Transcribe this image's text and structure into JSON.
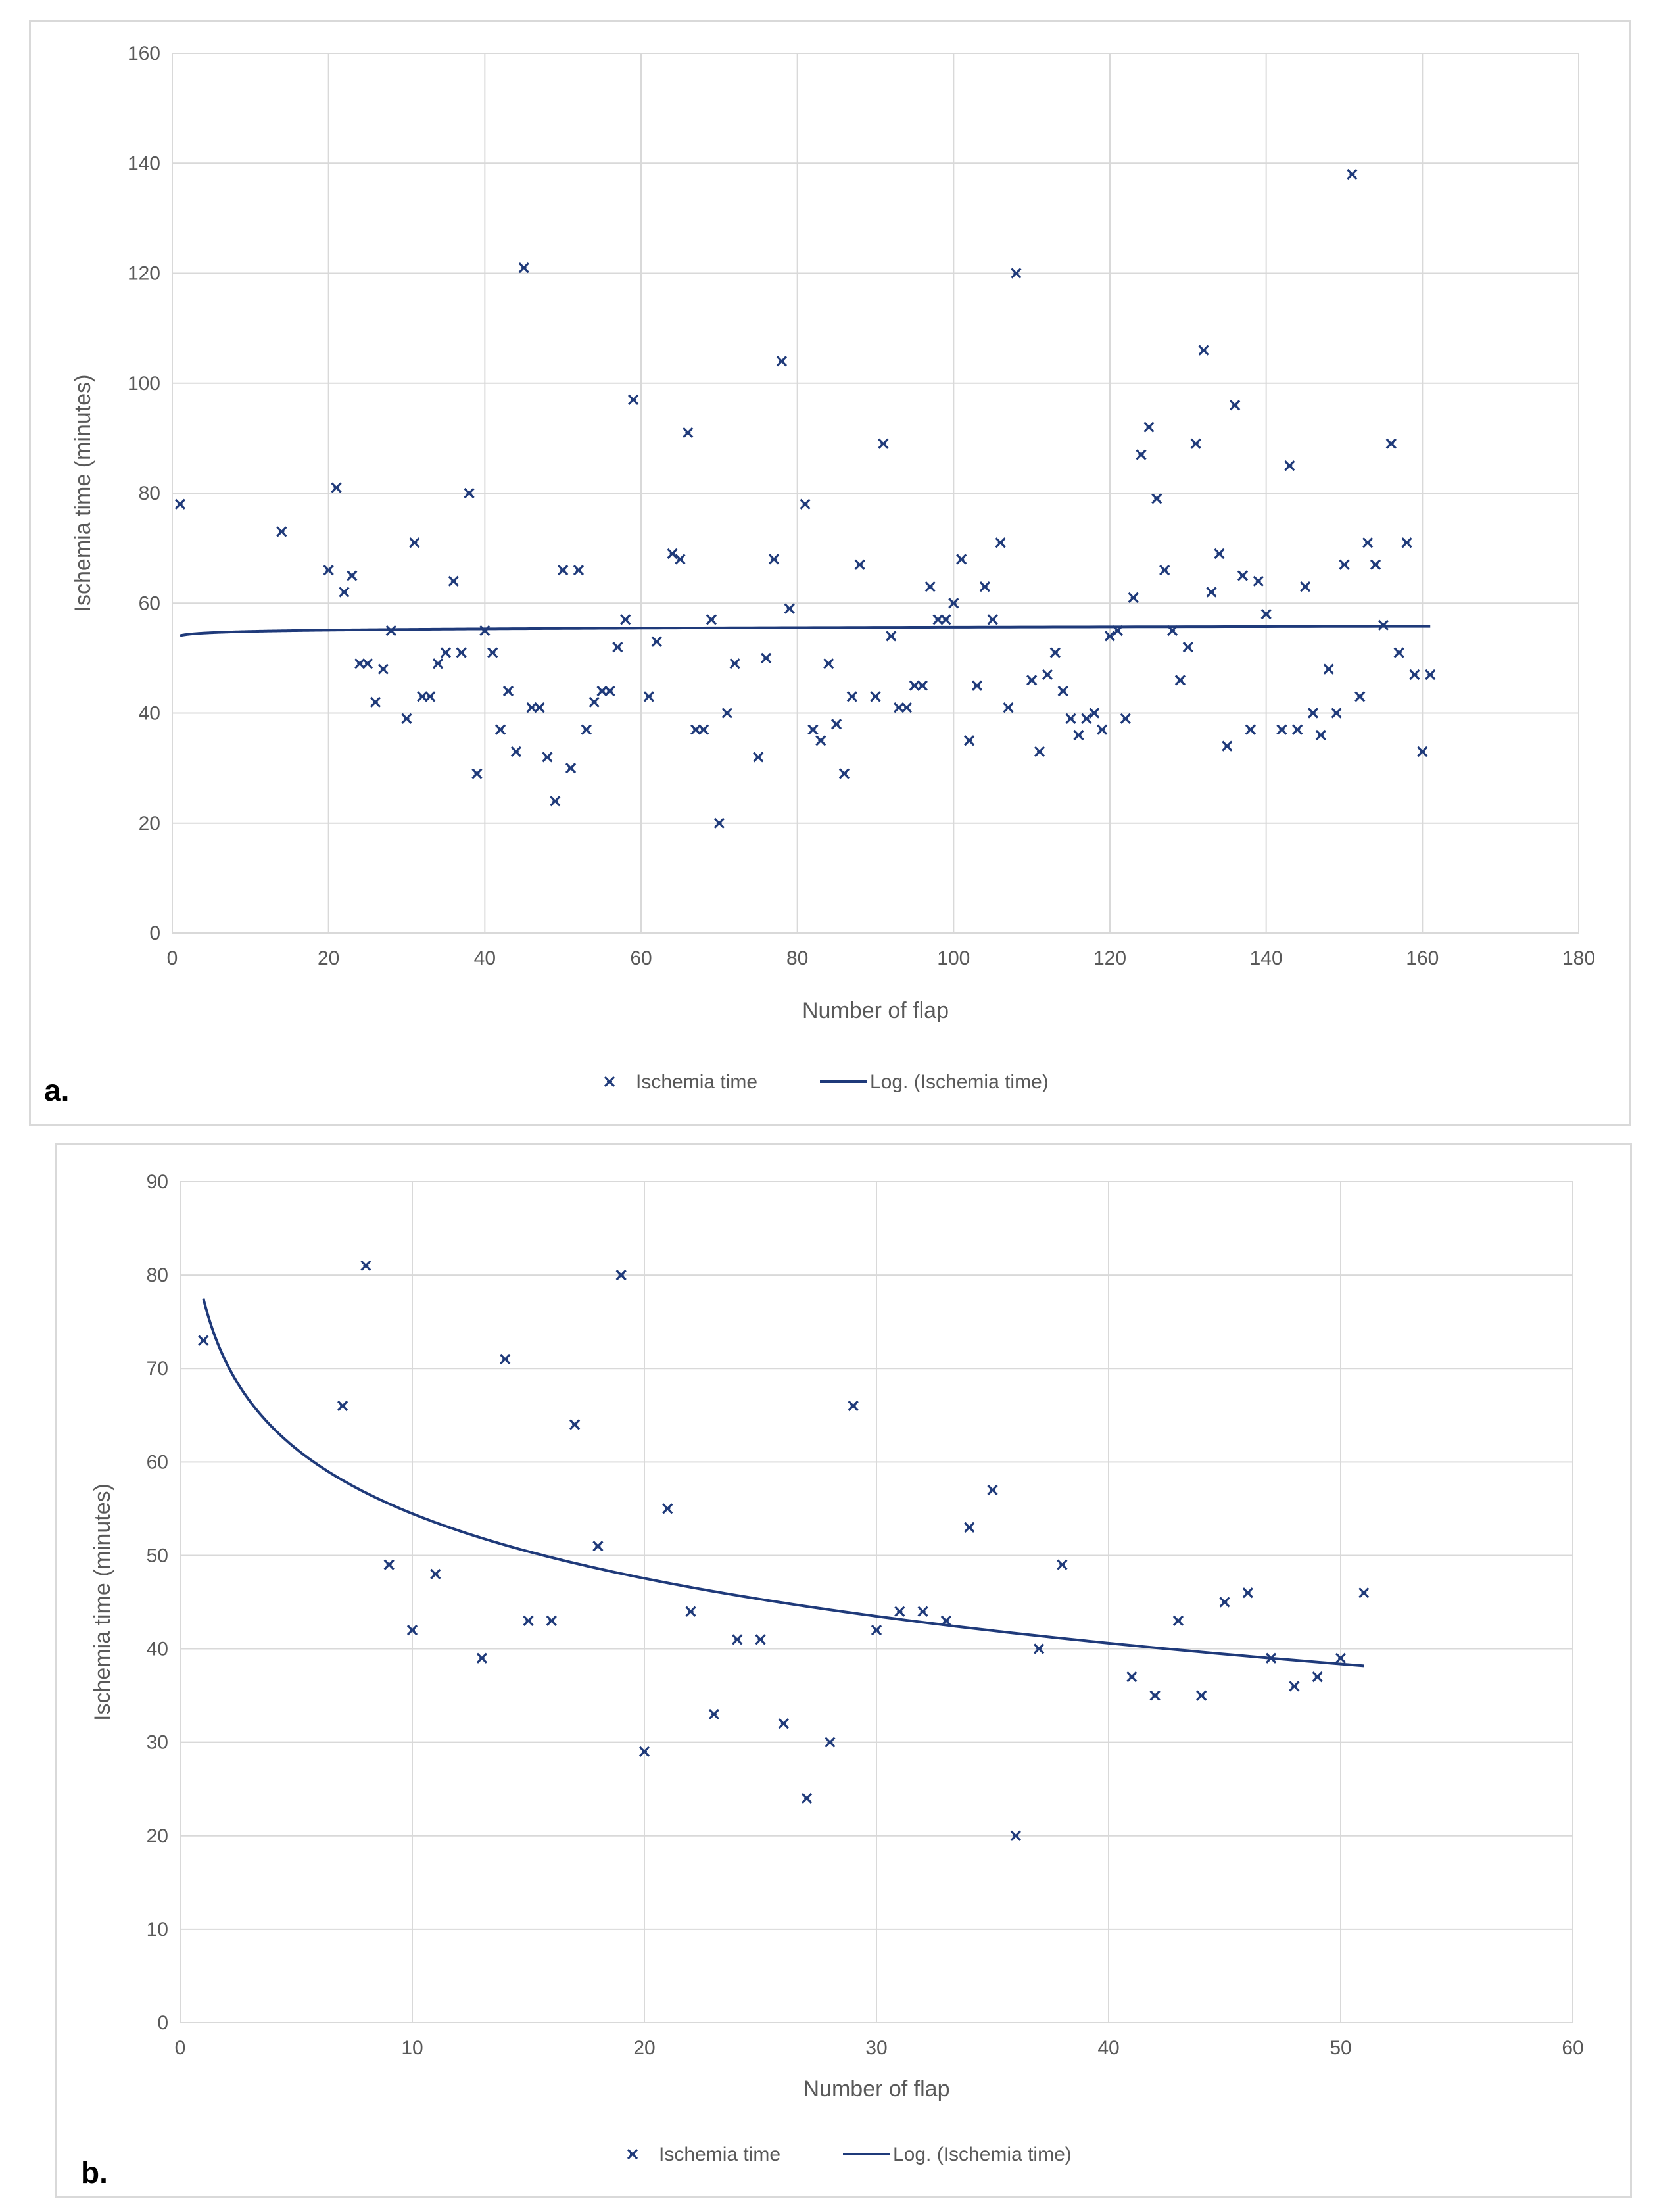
{
  "colors": {
    "marker": "#1f3a7a",
    "trend": "#1f3a7a",
    "grid": "#d9d9d9",
    "tick": "#595959"
  },
  "panels": {
    "a": {
      "label": "a."
    },
    "b": {
      "label": "b."
    }
  },
  "chart_data": [
    {
      "id": "a",
      "type": "scatter",
      "xlabel": "Number of flap",
      "ylabel": "Ischemia time (minutes)",
      "xlim": [
        0,
        180
      ],
      "xticks": [
        0,
        20,
        40,
        60,
        80,
        100,
        120,
        140,
        160,
        180
      ],
      "ylim": [
        0,
        160
      ],
      "yticks": [
        0,
        20,
        40,
        60,
        80,
        100,
        120,
        140,
        160
      ],
      "grid": true,
      "legend_position": "bottom",
      "legend": {
        "points": "Ischemia time",
        "trend": "Log. (Ischemia time)"
      },
      "series": [
        {
          "name": "Ischemia time",
          "points": [
            [
              1,
              78
            ],
            [
              14,
              73
            ],
            [
              20,
              66
            ],
            [
              21,
              81
            ],
            [
              22,
              62
            ],
            [
              23,
              65
            ],
            [
              24,
              49
            ],
            [
              25,
              49
            ],
            [
              26,
              42
            ],
            [
              27,
              48
            ],
            [
              28,
              55
            ],
            [
              30,
              39
            ],
            [
              31,
              71
            ],
            [
              32,
              43
            ],
            [
              33,
              43
            ],
            [
              34,
              49
            ],
            [
              35,
              51
            ],
            [
              36,
              64
            ],
            [
              37,
              51
            ],
            [
              38,
              80
            ],
            [
              39,
              29
            ],
            [
              40,
              55
            ],
            [
              41,
              51
            ],
            [
              42,
              37
            ],
            [
              43,
              44
            ],
            [
              44,
              33
            ],
            [
              45,
              121
            ],
            [
              46,
              41
            ],
            [
              47,
              41
            ],
            [
              48,
              32
            ],
            [
              49,
              24
            ],
            [
              50,
              66
            ],
            [
              51,
              30
            ],
            [
              52,
              66
            ],
            [
              53,
              37
            ],
            [
              54,
              42
            ],
            [
              55,
              44
            ],
            [
              56,
              44
            ],
            [
              57,
              52
            ],
            [
              58,
              57
            ],
            [
              59,
              97
            ],
            [
              61,
              43
            ],
            [
              62,
              53
            ],
            [
              64,
              69
            ],
            [
              65,
              68
            ],
            [
              66,
              91
            ],
            [
              67,
              37
            ],
            [
              68,
              37
            ],
            [
              69,
              57
            ],
            [
              70,
              20
            ],
            [
              71,
              40
            ],
            [
              72,
              49
            ],
            [
              75,
              32
            ],
            [
              76,
              50
            ],
            [
              77,
              68
            ],
            [
              78,
              104
            ],
            [
              79,
              59
            ],
            [
              81,
              78
            ],
            [
              82,
              37
            ],
            [
              83,
              35
            ],
            [
              84,
              49
            ],
            [
              85,
              38
            ],
            [
              86,
              29
            ],
            [
              87,
              43
            ],
            [
              88,
              67
            ],
            [
              90,
              43
            ],
            [
              91,
              89
            ],
            [
              92,
              54
            ],
            [
              93,
              41
            ],
            [
              94,
              41
            ],
            [
              95,
              45
            ],
            [
              96,
              45
            ],
            [
              97,
              63
            ],
            [
              98,
              57
            ],
            [
              99,
              57
            ],
            [
              100,
              60
            ],
            [
              101,
              68
            ],
            [
              102,
              35
            ],
            [
              103,
              45
            ],
            [
              104,
              63
            ],
            [
              105,
              57
            ],
            [
              106,
              71
            ],
            [
              107,
              41
            ],
            [
              108,
              120
            ],
            [
              110,
              46
            ],
            [
              111,
              33
            ],
            [
              112,
              47
            ],
            [
              113,
              51
            ],
            [
              114,
              44
            ],
            [
              115,
              39
            ],
            [
              116,
              36
            ],
            [
              117,
              39
            ],
            [
              118,
              40
            ],
            [
              119,
              37
            ],
            [
              120,
              54
            ],
            [
              121,
              55
            ],
            [
              122,
              39
            ],
            [
              123,
              61
            ],
            [
              124,
              87
            ],
            [
              125,
              92
            ],
            [
              126,
              79
            ],
            [
              127,
              66
            ],
            [
              128,
              55
            ],
            [
              129,
              46
            ],
            [
              130,
              52
            ],
            [
              131,
              89
            ],
            [
              132,
              106
            ],
            [
              133,
              62
            ],
            [
              134,
              69
            ],
            [
              135,
              34
            ],
            [
              136,
              96
            ],
            [
              137,
              65
            ],
            [
              138,
              37
            ],
            [
              139,
              64
            ],
            [
              140,
              58
            ],
            [
              142,
              37
            ],
            [
              143,
              85
            ],
            [
              144,
              37
            ],
            [
              145,
              63
            ],
            [
              146,
              40
            ],
            [
              147,
              36
            ],
            [
              148,
              48
            ],
            [
              149,
              40
            ],
            [
              150,
              67
            ],
            [
              151,
              138
            ],
            [
              152,
              43
            ],
            [
              153,
              71
            ],
            [
              154,
              67
            ],
            [
              155,
              56
            ],
            [
              156,
              89
            ],
            [
              157,
              51
            ],
            [
              158,
              71
            ],
            [
              159,
              47
            ],
            [
              160,
              33
            ],
            [
              161,
              47
            ]
          ]
        },
        {
          "name": "Log. (Ischemia time)",
          "type": "log-trend",
          "a": 54.1,
          "b": 0.33,
          "x_range": [
            1,
            161
          ]
        }
      ]
    },
    {
      "id": "b",
      "type": "scatter",
      "xlabel": "Number of flap",
      "ylabel": "Ischemia time (minutes)",
      "xlim": [
        0,
        60
      ],
      "xticks": [
        0,
        10,
        20,
        30,
        40,
        50,
        60
      ],
      "ylim": [
        0,
        90
      ],
      "yticks": [
        0,
        10,
        20,
        30,
        40,
        50,
        60,
        70,
        80,
        90
      ],
      "grid": true,
      "legend_position": "bottom",
      "legend": {
        "points": "Ischemia time",
        "trend": "Log. (Ischemia time)"
      },
      "series": [
        {
          "name": "Ischemia time",
          "points": [
            [
              1,
              73
            ],
            [
              7,
              66
            ],
            [
              8,
              81
            ],
            [
              9,
              49
            ],
            [
              10,
              42
            ],
            [
              11,
              48
            ],
            [
              13,
              39
            ],
            [
              14,
              71
            ],
            [
              15,
              43
            ],
            [
              16,
              43
            ],
            [
              17,
              64
            ],
            [
              18,
              51
            ],
            [
              19,
              80
            ],
            [
              20,
              29
            ],
            [
              21,
              55
            ],
            [
              22,
              44
            ],
            [
              23,
              33
            ],
            [
              24,
              41
            ],
            [
              25,
              41
            ],
            [
              26,
              32
            ],
            [
              27,
              24
            ],
            [
              28,
              30
            ],
            [
              29,
              66
            ],
            [
              30,
              42
            ],
            [
              31,
              44
            ],
            [
              32,
              44
            ],
            [
              33,
              43
            ],
            [
              34,
              53
            ],
            [
              35,
              57
            ],
            [
              36,
              20
            ],
            [
              37,
              40
            ],
            [
              38,
              49
            ],
            [
              41,
              37
            ],
            [
              42,
              35
            ],
            [
              43,
              43
            ],
            [
              44,
              35
            ],
            [
              45,
              45
            ],
            [
              46,
              46
            ],
            [
              47,
              39
            ],
            [
              48,
              36
            ],
            [
              49,
              37
            ],
            [
              50,
              39
            ],
            [
              51,
              46
            ]
          ]
        },
        {
          "name": "Log. (Ischemia time)",
          "type": "log-trend",
          "a": 77.5,
          "b": -10.0,
          "x_range": [
            1,
            51
          ]
        }
      ]
    }
  ]
}
